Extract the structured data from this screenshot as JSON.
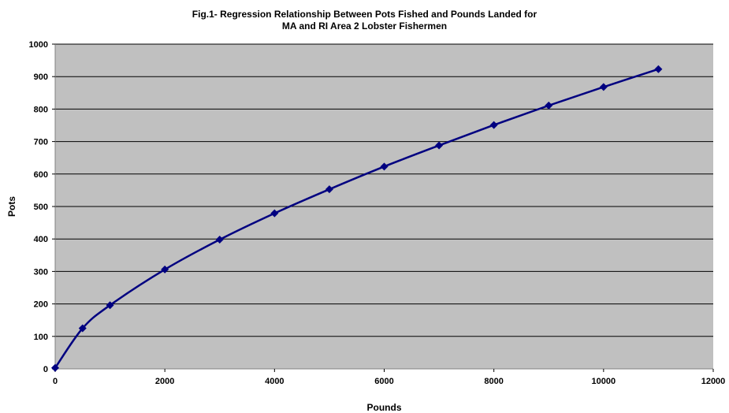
{
  "chart_data": {
    "type": "scatter",
    "title_lines": [
      "Fig.1- Regression Relationship Between Pots Fished and Pounds Landed for",
      "MA and RI Area 2 Lobster Fishermen"
    ],
    "xlabel": "Pounds",
    "ylabel": "Pots",
    "xlim": [
      0,
      12000
    ],
    "ylim": [
      0,
      1000
    ],
    "xticks": [
      0,
      2000,
      4000,
      6000,
      8000,
      10000,
      12000
    ],
    "yticks": [
      0,
      100,
      200,
      300,
      400,
      500,
      600,
      700,
      800,
      900,
      1000
    ],
    "grid": "horizontal",
    "legend": "none",
    "marker": "diamond",
    "line": "smoothed",
    "series": [
      {
        "x": [
          0,
          500,
          1000,
          2000,
          3000,
          4000,
          5000,
          6000,
          7000,
          8000,
          9000,
          10000,
          11000
        ],
        "y": [
          3,
          125,
          196,
          306,
          398,
          479,
          553,
          623,
          688,
          751,
          811,
          868,
          923
        ]
      }
    ],
    "colors": {
      "plot_background": "#c0c0c0",
      "series": "#000080",
      "gridline": "#000000",
      "axis": "#808080"
    }
  }
}
